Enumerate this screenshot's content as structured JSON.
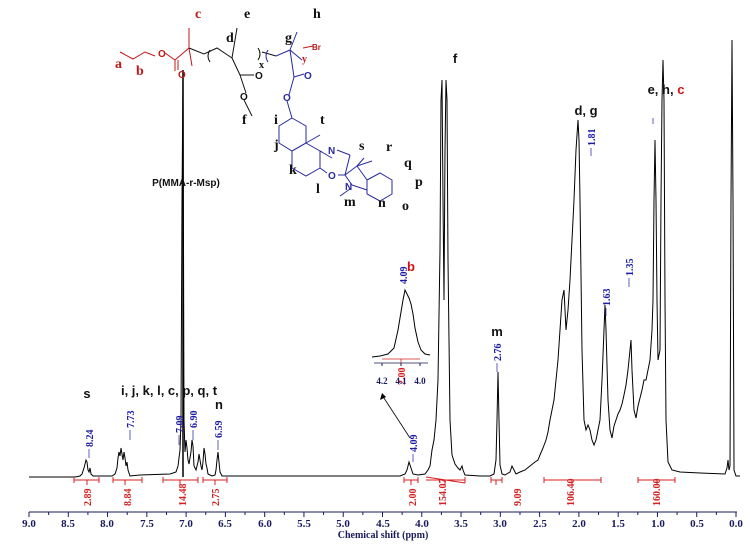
{
  "chart_data": {
    "type": "line",
    "title": "",
    "xlabel": "Chemical shift (ppm)",
    "ylabel": "",
    "xlim": [
      9.0,
      0.0
    ],
    "x_ticks": [
      "9.0",
      "8.5",
      "8.0",
      "7.5",
      "7.0",
      "6.5",
      "6.0",
      "5.5",
      "5.0",
      "4.5",
      "4.0",
      "3.5",
      "3.0",
      "2.5",
      "2.0",
      "1.5",
      "1.0",
      "0.5",
      "0.0"
    ],
    "grid": false,
    "legend": null,
    "polymer_label": "P(MMA-r-Msp)",
    "peaks": [
      {
        "ppm": 8.24,
        "label": "8.24"
      },
      {
        "ppm": 7.73,
        "label": "7.73"
      },
      {
        "ppm": 7.09,
        "label": "7.09"
      },
      {
        "ppm": 6.9,
        "label": "6.90"
      },
      {
        "ppm": 6.59,
        "label": "6.59"
      },
      {
        "ppm": 4.09,
        "label": "4.09"
      },
      {
        "ppm": 2.76,
        "label": "2.76"
      },
      {
        "ppm": 1.81,
        "label": "1.81"
      },
      {
        "ppm": 1.63,
        "label": "1.63"
      },
      {
        "ppm": 1.35,
        "label": "1.35"
      }
    ],
    "integrals": [
      {
        "from": 8.45,
        "to": 8.15,
        "value": "2.89"
      },
      {
        "from": 7.95,
        "to": 7.45,
        "value": "8.84"
      },
      {
        "from": 7.25,
        "to": 6.8,
        "value": "14.48"
      },
      {
        "from": 6.8,
        "to": 6.45,
        "value": "2.75"
      },
      {
        "from": 4.2,
        "to": 4.0,
        "value": "2.00"
      },
      {
        "from": 3.9,
        "to": 3.4,
        "value": "154.07"
      },
      {
        "from": 2.85,
        "to": 2.7,
        "value": "9.09"
      },
      {
        "from": 2.45,
        "to": 1.7,
        "value": "106.40"
      },
      {
        "from": 1.25,
        "to": 0.78,
        "value": "160.00"
      }
    ],
    "assignments": [
      {
        "text": "s",
        "ppm": 8.24
      },
      {
        "text": "i, j, k, l, c, p, q, t",
        "ppm": 7.3
      },
      {
        "text": "n",
        "ppm": 6.59
      },
      {
        "text": "b",
        "ppm": 4.09
      },
      {
        "text": "f",
        "ppm": 3.6
      },
      {
        "text": "m",
        "ppm": 2.76
      },
      {
        "text": "d, g",
        "ppm": 1.81
      },
      {
        "text": "e, h, c",
        "ppm": 1.0
      }
    ],
    "inset": {
      "title": "b",
      "peak_label": "4.09",
      "integral": "2.00",
      "x_ticks": [
        "4.2",
        "4.1",
        "4.0"
      ]
    }
  },
  "structure": {
    "labels": {
      "a": "a",
      "b": "b",
      "c": "c",
      "d": "d",
      "e": "e",
      "f": "f",
      "g": "g",
      "h": "h",
      "i": "i",
      "j": "j",
      "k": "k",
      "l": "l",
      "m": "m",
      "n": "n",
      "o": "o",
      "p": "p",
      "q": "q",
      "r": "r",
      "s": "s",
      "t": "t",
      "x": "x",
      "y": "y"
    },
    "atoms": {
      "O": "O",
      "N": "N",
      "Br": "Br"
    }
  },
  "colors": {
    "spectrum": "#000000",
    "peak_labels": "#1b1ba8",
    "integrals": "#d42020",
    "axis": "#1a1a5e",
    "structure_red": "#c01818",
    "structure_blue": "#2a2aa0"
  }
}
